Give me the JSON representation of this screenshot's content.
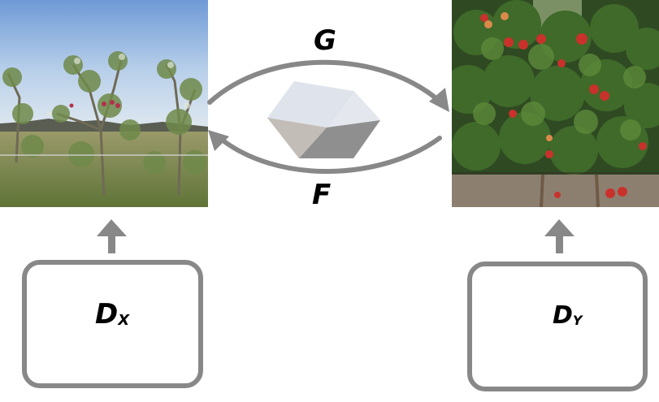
{
  "domain_x": {
    "image_icon": "sparse-young-apple-tree-photo",
    "discriminator": {
      "main": "D",
      "sub": "X"
    }
  },
  "domain_y": {
    "image_icon": "fruiting-apple-tree-photo",
    "discriminator": {
      "main": "D",
      "sub": "Y"
    }
  },
  "mappings": {
    "forward_label": "G",
    "backward_label": "F"
  },
  "center_icon": "cube-icon",
  "colors": {
    "arrow": "#888888",
    "box_border": "#888888",
    "cube_top": "#dfe4ec",
    "cube_left": "#c8c3be",
    "cube_front": "#8f8f8f"
  }
}
